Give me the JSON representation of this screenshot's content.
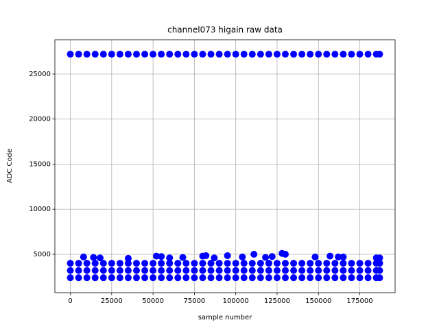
{
  "chart_data": {
    "type": "scatter",
    "title": "channel073 higain raw data",
    "x_label": "sample number",
    "y_label": "ADC Code",
    "color": "#0000ff",
    "grid": true,
    "xlim": [
      -9350,
      196350
    ],
    "ylim": [
      740,
      28800
    ],
    "xticks": [
      0,
      25000,
      50000,
      75000,
      100000,
      125000,
      150000,
      175000
    ],
    "yticks": [
      5000,
      10000,
      15000,
      20000,
      25000
    ],
    "x": [
      0,
      5000,
      10000,
      15000,
      20000,
      25000,
      30000,
      35000,
      40000,
      45000,
      50000,
      55000,
      60000,
      65000,
      70000,
      75000,
      80000,
      85000,
      90000,
      95000,
      100000,
      105000,
      110000,
      115000,
      120000,
      125000,
      130000,
      135000,
      140000,
      145000,
      150000,
      155000,
      160000,
      165000,
      170000,
      175000,
      180000,
      185000,
      187000,
      0,
      5000,
      10000,
      15000,
      20000,
      25000,
      30000,
      35000,
      40000,
      45000,
      50000,
      55000,
      60000,
      65000,
      70000,
      75000,
      80000,
      85000,
      90000,
      95000,
      100000,
      105000,
      110000,
      115000,
      120000,
      125000,
      130000,
      135000,
      140000,
      145000,
      150000,
      155000,
      160000,
      165000,
      170000,
      175000,
      180000,
      185000,
      187000,
      0,
      5000,
      10000,
      15000,
      20000,
      25000,
      30000,
      35000,
      40000,
      45000,
      50000,
      55000,
      60000,
      65000,
      70000,
      75000,
      80000,
      85000,
      90000,
      95000,
      100000,
      105000,
      110000,
      115000,
      120000,
      125000,
      130000,
      135000,
      140000,
      145000,
      150000,
      155000,
      160000,
      165000,
      170000,
      175000,
      180000,
      185000,
      187000,
      0,
      5000,
      10000,
      15000,
      20000,
      25000,
      30000,
      35000,
      40000,
      45000,
      50000,
      55000,
      60000,
      65000,
      70000,
      75000,
      80000,
      85000,
      90000,
      95000,
      100000,
      105000,
      110000,
      115000,
      120000,
      125000,
      130000,
      135000,
      140000,
      145000,
      150000,
      155000,
      160000,
      165000,
      170000,
      175000,
      180000,
      185000,
      187000,
      8000,
      14000,
      18000,
      35000,
      52000,
      55000,
      60000,
      68000,
      80000,
      82000,
      87000,
      95000,
      104000,
      111000,
      118000,
      122000,
      128000,
      130000,
      148000,
      157000,
      162000,
      165000,
      185000,
      187000
    ],
    "y": [
      27200,
      27200,
      27200,
      27200,
      27200,
      27200,
      27200,
      27200,
      27200,
      27200,
      27200,
      27200,
      27200,
      27200,
      27200,
      27200,
      27200,
      27200,
      27200,
      27200,
      27200,
      27200,
      27200,
      27200,
      27200,
      27200,
      27200,
      27200,
      27200,
      27200,
      27200,
      27200,
      27200,
      27200,
      27200,
      27200,
      27200,
      27200,
      27200,
      2400,
      2400,
      2400,
      2400,
      2400,
      2400,
      2400,
      2400,
      2400,
      2400,
      2400,
      2400,
      2400,
      2400,
      2400,
      2400,
      2400,
      2400,
      2400,
      2400,
      2400,
      2400,
      2400,
      2400,
      2400,
      2400,
      2400,
      2400,
      2400,
      2400,
      2400,
      2400,
      2400,
      2400,
      2400,
      2400,
      2400,
      2400,
      2400,
      3200,
      3200,
      3200,
      3200,
      3200,
      3200,
      3200,
      3200,
      3200,
      3200,
      3200,
      3200,
      3200,
      3200,
      3200,
      3200,
      3200,
      3200,
      3200,
      3200,
      3200,
      3200,
      3200,
      3200,
      3200,
      3200,
      3200,
      3200,
      3200,
      3200,
      3200,
      3200,
      3200,
      3200,
      3200,
      3200,
      3200,
      3200,
      3200,
      4000,
      4000,
      4000,
      4000,
      4000,
      4000,
      4000,
      4000,
      4000,
      4000,
      4000,
      4000,
      4000,
      4000,
      4000,
      4000,
      4000,
      4000,
      4000,
      4000,
      4000,
      4000,
      4000,
      4000,
      4000,
      4000,
      4000,
      4000,
      4000,
      4000,
      4000,
      4000,
      4000,
      4000,
      4000,
      4000,
      4000,
      4000,
      4000,
      4700,
      4650,
      4600,
      4550,
      4800,
      4750,
      4600,
      4650,
      4800,
      4850,
      4600,
      4850,
      4700,
      5000,
      4650,
      4750,
      5100,
      5000,
      4700,
      4800,
      4700,
      4700,
      4600,
      4600
    ]
  }
}
